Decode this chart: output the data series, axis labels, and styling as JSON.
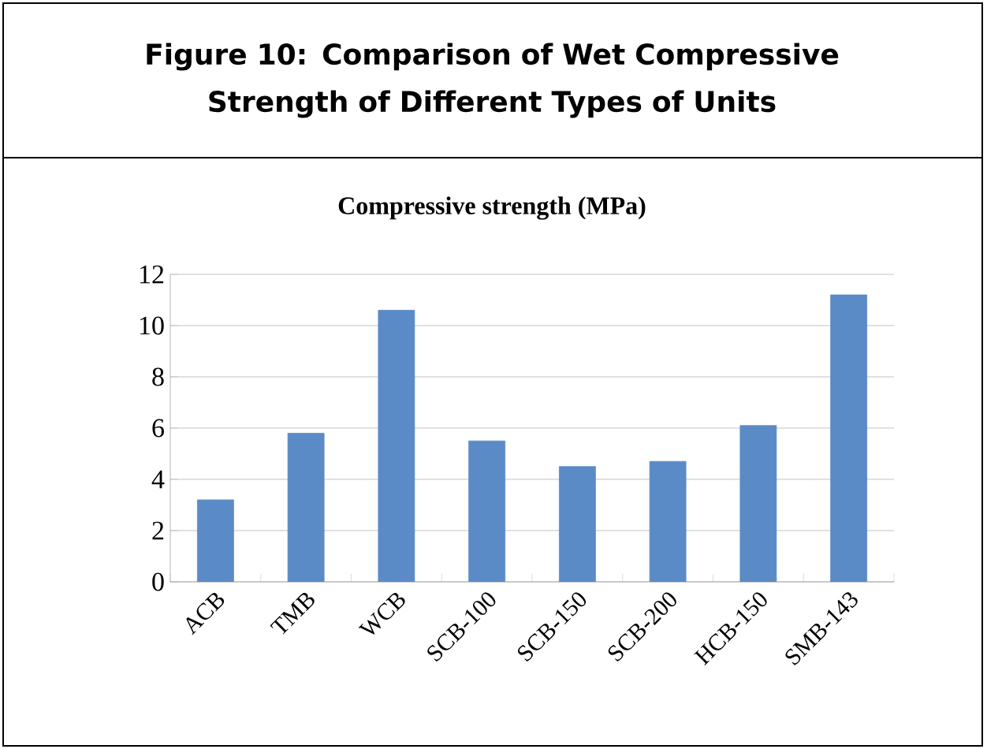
{
  "chart_data": {
    "type": "bar",
    "title": "Figure 10: Comparison of Wet Compressive Strength of Different Types of Units",
    "subtitle": "Compressive strength (MPa)",
    "categories": [
      "ACB",
      "TMB",
      "WCB",
      "SCB-100",
      "SCB-150",
      "SCB-200",
      "HCB-150",
      "SMB-143"
    ],
    "values": [
      3.2,
      5.8,
      10.6,
      5.5,
      4.5,
      4.7,
      6.1,
      11.2
    ],
    "color": "#5b8bc6",
    "ylim": [
      0,
      12
    ],
    "yticks": [
      0,
      2,
      4,
      6,
      8,
      10,
      12
    ],
    "grid": "y"
  }
}
